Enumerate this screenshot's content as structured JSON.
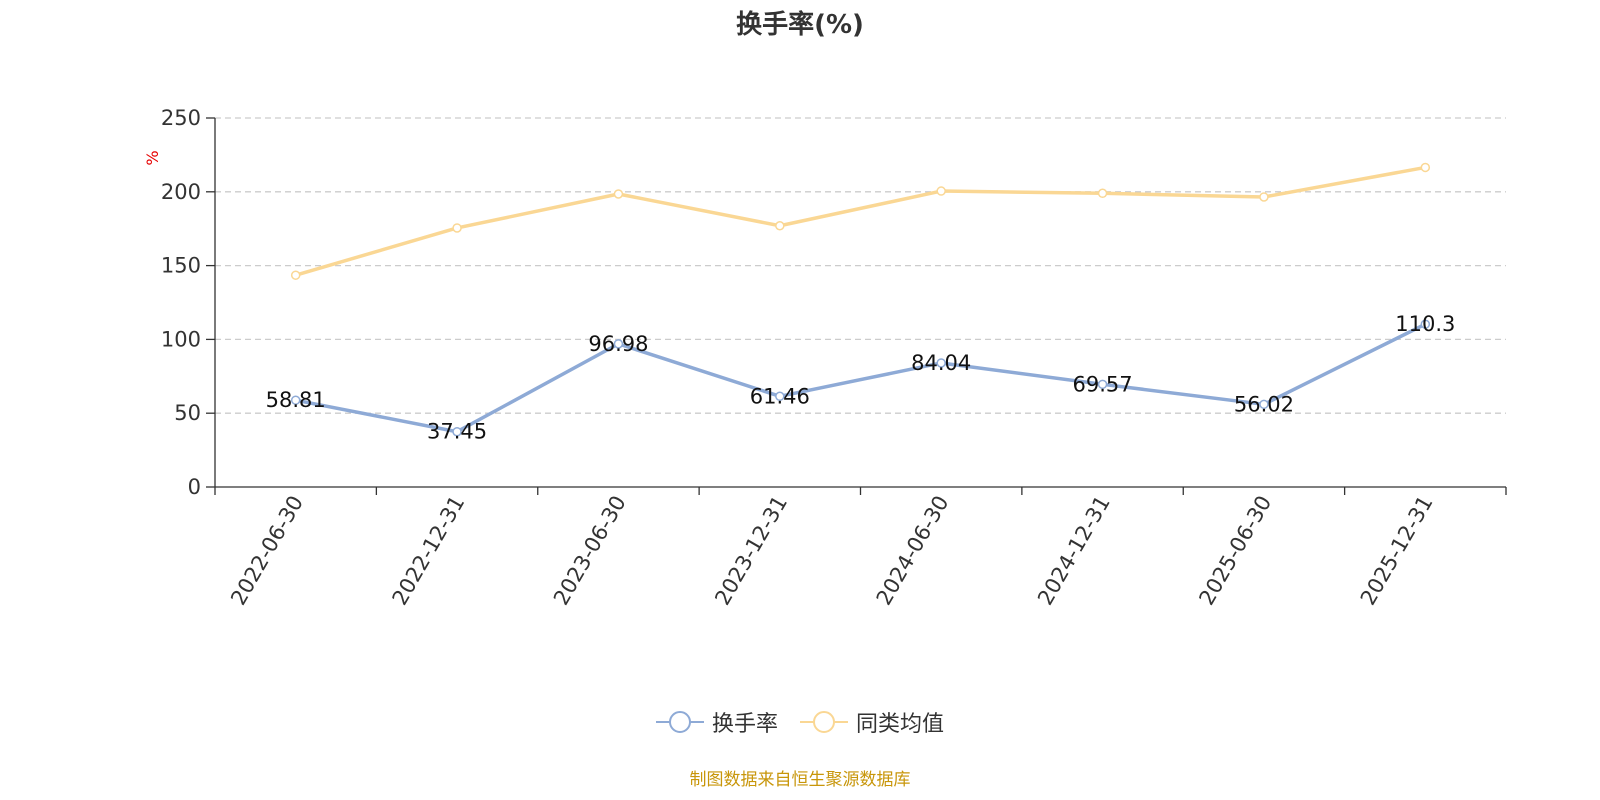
{
  "chart_data": {
    "type": "line",
    "title": "换手率(%)",
    "ylabel": "%",
    "xlabel": "",
    "ylim": [
      0,
      250
    ],
    "yticks": [
      0,
      50,
      100,
      150,
      200,
      250
    ],
    "grid": true,
    "categories": [
      "2022-06-30",
      "2022-12-31",
      "2023-06-30",
      "2023-12-31",
      "2024-06-30",
      "2024-12-31",
      "2025-06-30",
      "2025-12-31"
    ],
    "series": [
      {
        "name": "换手率",
        "color": "#8eaad6",
        "values": [
          58.81,
          37.45,
          96.98,
          61.46,
          84.04,
          69.57,
          56.02,
          110.3
        ],
        "labels": [
          "58.81",
          "37.45",
          "96.98",
          "61.46",
          "84.04",
          "69.57",
          "56.02",
          "110.3"
        ]
      },
      {
        "name": "同类均值",
        "color": "#fad794",
        "values": [
          143.5,
          175.5,
          198.5,
          177.0,
          200.5,
          199.0,
          196.5,
          216.5
        ]
      }
    ],
    "legend_position": "bottom-center"
  },
  "source_text": "制图数据来自恒生聚源数据库",
  "ylabel_color": "#e60000",
  "grid_color": "#cccccc",
  "axis_color": "#333333"
}
